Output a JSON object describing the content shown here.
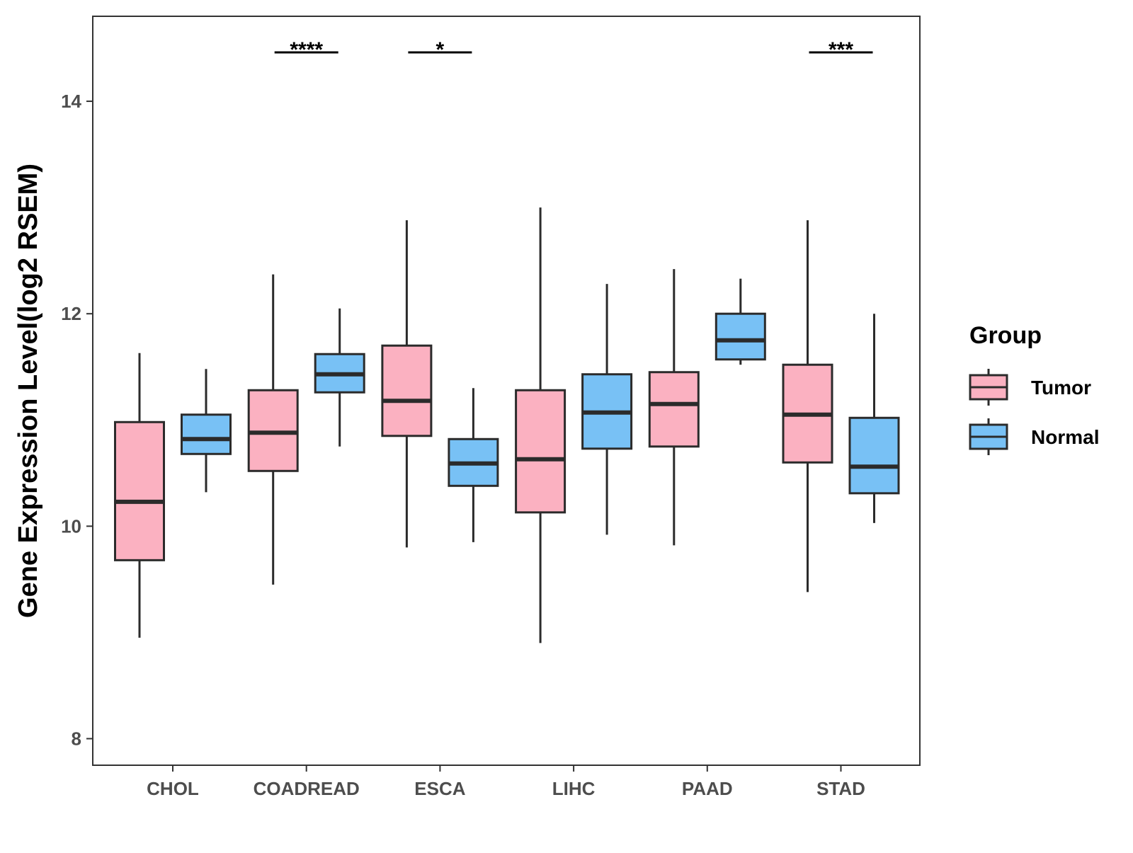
{
  "chart_data": {
    "type": "boxplot",
    "title": "",
    "xlabel": "",
    "ylabel": "Gene Expression Level(log2 RSEM)",
    "ylim": [
      7.75,
      14.8
    ],
    "yticks": [
      8,
      10,
      12,
      14
    ],
    "categories": [
      "CHOL",
      "COADREAD",
      "ESCA",
      "LIHC",
      "PAAD",
      "STAD"
    ],
    "legend": {
      "title": "Group",
      "position": "right",
      "entries": [
        "Tumor",
        "Normal"
      ]
    },
    "series": [
      {
        "name": "Tumor",
        "color": "#FBB1C1",
        "boxes": [
          {
            "category": "CHOL",
            "whisker_low": 8.95,
            "q1": 9.68,
            "median": 10.23,
            "q3": 10.98,
            "whisker_high": 11.63
          },
          {
            "category": "COADREAD",
            "whisker_low": 9.45,
            "q1": 10.52,
            "median": 10.88,
            "q3": 11.28,
            "whisker_high": 12.37
          },
          {
            "category": "ESCA",
            "whisker_low": 9.8,
            "q1": 10.85,
            "median": 11.18,
            "q3": 11.7,
            "whisker_high": 12.88
          },
          {
            "category": "LIHC",
            "whisker_low": 8.9,
            "q1": 10.13,
            "median": 10.63,
            "q3": 11.28,
            "whisker_high": 13.0
          },
          {
            "category": "PAAD",
            "whisker_low": 9.82,
            "q1": 10.75,
            "median": 11.15,
            "q3": 11.45,
            "whisker_high": 12.42
          },
          {
            "category": "STAD",
            "whisker_low": 9.38,
            "q1": 10.6,
            "median": 11.05,
            "q3": 11.52,
            "whisker_high": 12.88
          }
        ]
      },
      {
        "name": "Normal",
        "color": "#78C1F5",
        "boxes": [
          {
            "category": "CHOL",
            "whisker_low": 10.32,
            "q1": 10.68,
            "median": 10.82,
            "q3": 11.05,
            "whisker_high": 11.48
          },
          {
            "category": "COADREAD",
            "whisker_low": 10.75,
            "q1": 11.26,
            "median": 11.43,
            "q3": 11.62,
            "whisker_high": 12.05
          },
          {
            "category": "ESCA",
            "whisker_low": 9.85,
            "q1": 10.38,
            "median": 10.59,
            "q3": 10.82,
            "whisker_high": 11.3
          },
          {
            "category": "LIHC",
            "whisker_low": 9.92,
            "q1": 10.73,
            "median": 11.07,
            "q3": 11.43,
            "whisker_high": 12.28
          },
          {
            "category": "PAAD",
            "whisker_low": 11.52,
            "q1": 11.57,
            "median": 11.75,
            "q3": 12.0,
            "whisker_high": 12.33
          },
          {
            "category": "STAD",
            "whisker_low": 10.03,
            "q1": 10.31,
            "median": 10.56,
            "q3": 11.02,
            "whisker_high": 12.0
          }
        ]
      }
    ],
    "significance": [
      {
        "category": "COADREAD",
        "label": "****"
      },
      {
        "category": "ESCA",
        "label": "*"
      },
      {
        "category": "STAD",
        "label": "***"
      }
    ],
    "significance_level": 14.46
  }
}
